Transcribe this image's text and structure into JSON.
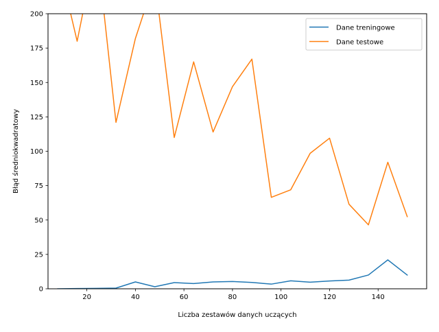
{
  "chart_data": {
    "type": "line",
    "xlabel": "Liczba zestawów danych uczących",
    "ylabel": "Błąd średniokwadratowy",
    "xlim": [
      4,
      160
    ],
    "ylim": [
      0,
      200
    ],
    "x_ticks": [
      20,
      40,
      60,
      80,
      100,
      120,
      140
    ],
    "y_ticks": [
      0,
      25,
      50,
      75,
      100,
      125,
      150,
      175,
      200
    ],
    "grid": false,
    "legend": "top-right",
    "series": [
      {
        "name": "Dane treningowe",
        "color": "#1f77b4",
        "x": [
          8,
          16,
          24,
          32,
          40,
          48,
          56,
          64,
          72,
          80,
          88,
          96,
          104,
          112,
          120,
          128,
          136,
          144,
          152
        ],
        "y": [
          0.0,
          0.2,
          0.3,
          0.5,
          5.0,
          1.5,
          4.5,
          3.8,
          5.0,
          5.3,
          4.6,
          3.4,
          5.8,
          4.8,
          5.7,
          6.3,
          10.0,
          21.0,
          10.0
        ]
      },
      {
        "name": "Dane testowe",
        "color": "#ff7f0e",
        "x": [
          8,
          16,
          24,
          32,
          40,
          48,
          56,
          64,
          72,
          80,
          88,
          96,
          104,
          112,
          120,
          128,
          136,
          144,
          152
        ],
        "y": [
          240,
          180,
          250,
          121,
          182,
          225,
          110,
          165,
          114,
          147,
          167,
          66.5,
          72,
          98.5,
          109.5,
          61.5,
          46.5,
          92,
          52.5
        ]
      }
    ]
  }
}
